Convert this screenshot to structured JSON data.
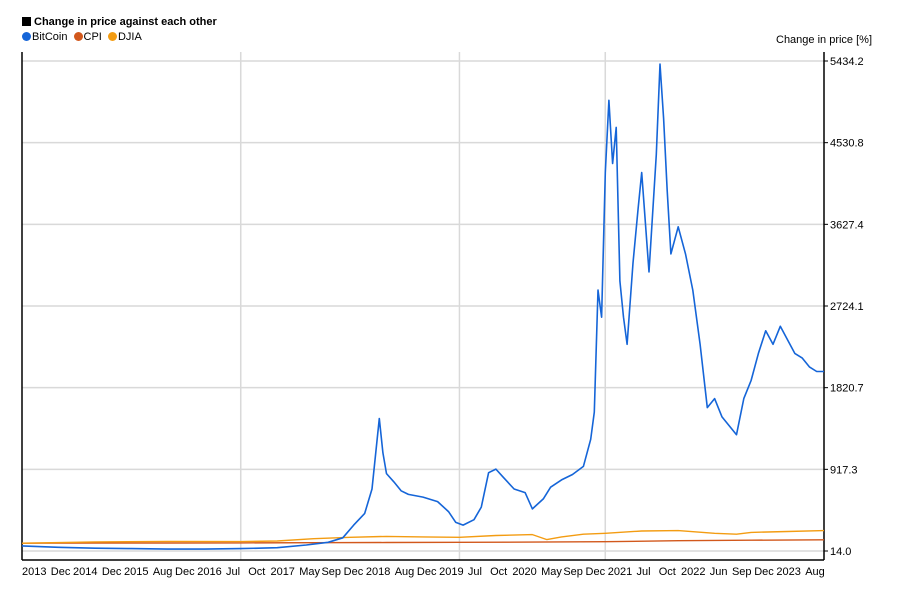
{
  "chart_data": {
    "type": "line",
    "title": "Change in price against each other",
    "ylabel": "Change in price [%]",
    "ylim": [
      14.0,
      5434.2
    ],
    "y_ticks": [
      "5434.2",
      "4530.8",
      "3627.4",
      "2724.1",
      "1820.7",
      "917.3",
      "14.0"
    ],
    "x_tick_labels": [
      "2013",
      "Dec",
      "2014",
      "Dec",
      "2015",
      "Aug",
      "Dec",
      "2016",
      "Jul",
      "Oct",
      "2017",
      "May",
      "Sep",
      "Dec",
      "2018",
      "Aug",
      "Dec",
      "2019",
      "Jul",
      "Oct",
      "2020",
      "May",
      "Sep",
      "Dec",
      "2021",
      "Jul",
      "Oct",
      "2022",
      "Jun",
      "Sep",
      "Dec",
      "2023",
      "Aug"
    ],
    "grid": true,
    "legend_position": "top-left",
    "series": [
      {
        "name": "BitCoin",
        "color": "#1565d8",
        "x": [
          2013.0,
          2013.5,
          2014.0,
          2014.5,
          2015.0,
          2015.5,
          2016.0,
          2016.5,
          2016.9,
          2017.2,
          2017.4,
          2017.55,
          2017.7,
          2017.8,
          2017.9,
          2017.95,
          2018.0,
          2018.1,
          2018.2,
          2018.3,
          2018.5,
          2018.7,
          2018.85,
          2018.95,
          2019.05,
          2019.2,
          2019.3,
          2019.4,
          2019.5,
          2019.6,
          2019.75,
          2019.9,
          2020.0,
          2020.15,
          2020.25,
          2020.4,
          2020.55,
          2020.7,
          2020.8,
          2020.85,
          2020.9,
          2020.95,
          2021.0,
          2021.05,
          2021.1,
          2021.15,
          2021.2,
          2021.25,
          2021.3,
          2021.38,
          2021.45,
          2021.5,
          2021.6,
          2021.7,
          2021.75,
          2021.8,
          2021.85,
          2021.9,
          2022.0,
          2022.1,
          2022.2,
          2022.3,
          2022.4,
          2022.5,
          2022.6,
          2022.7,
          2022.8,
          2022.9,
          2023.0,
          2023.1,
          2023.2,
          2023.3,
          2023.4,
          2023.5,
          2023.6,
          2023.7,
          2023.8,
          2023.9,
          2024.0
        ],
        "values": [
          70,
          55,
          45,
          40,
          35,
          35,
          40,
          50,
          80,
          110,
          160,
          300,
          430,
          700,
          1480,
          1100,
          870,
          780,
          680,
          640,
          610,
          560,
          450,
          330,
          300,
          360,
          500,
          880,
          920,
          830,
          700,
          660,
          480,
          590,
          720,
          800,
          860,
          950,
          1250,
          1550,
          2900,
          2600,
          4200,
          5000,
          4300,
          4700,
          3000,
          2600,
          2300,
          3200,
          3800,
          4200,
          3100,
          4400,
          5400,
          4800,
          4000,
          3300,
          3600,
          3300,
          2900,
          2300,
          1600,
          1700,
          1500,
          1400,
          1300,
          1700,
          1900,
          2200,
          2450,
          2300,
          2500,
          2350,
          2200,
          2150,
          2050,
          2000,
          2000
        ]
      },
      {
        "name": "CPI",
        "color": "#d2581c",
        "x": [
          2013.0,
          2014.0,
          2015.0,
          2016.0,
          2017.0,
          2018.0,
          2019.0,
          2020.0,
          2021.0,
          2022.0,
          2023.0,
          2024.0
        ],
        "values": [
          100,
          102,
          103,
          104,
          106,
          108,
          110,
          112,
          117,
          128,
          134,
          138
        ]
      },
      {
        "name": "DJIA",
        "color": "#f39c12",
        "x": [
          2013.0,
          2014.0,
          2015.0,
          2016.0,
          2016.5,
          2017.0,
          2017.5,
          2018.0,
          2018.5,
          2019.0,
          2019.5,
          2020.0,
          2020.2,
          2020.4,
          2020.7,
          2021.0,
          2021.5,
          2022.0,
          2022.5,
          2022.8,
          2023.0,
          2023.5,
          2024.0
        ],
        "values": [
          100,
          115,
          120,
          118,
          125,
          150,
          165,
          175,
          170,
          165,
          185,
          195,
          140,
          170,
          200,
          210,
          235,
          240,
          210,
          200,
          220,
          230,
          240
        ]
      }
    ]
  }
}
